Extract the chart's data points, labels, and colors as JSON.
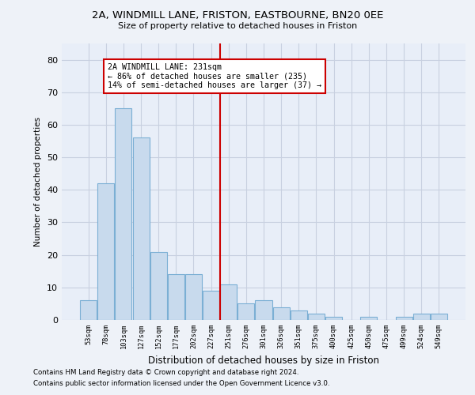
{
  "title1": "2A, WINDMILL LANE, FRISTON, EASTBOURNE, BN20 0EE",
  "title2": "Size of property relative to detached houses in Friston",
  "xlabel": "Distribution of detached houses by size in Friston",
  "ylabel": "Number of detached properties",
  "categories": [
    "53sqm",
    "78sqm",
    "103sqm",
    "127sqm",
    "152sqm",
    "177sqm",
    "202sqm",
    "227sqm",
    "251sqm",
    "276sqm",
    "301sqm",
    "326sqm",
    "351sqm",
    "375sqm",
    "400sqm",
    "425sqm",
    "450sqm",
    "475sqm",
    "499sqm",
    "524sqm",
    "549sqm"
  ],
  "values": [
    6,
    42,
    65,
    56,
    21,
    14,
    14,
    9,
    11,
    5,
    6,
    4,
    3,
    2,
    1,
    0,
    1,
    0,
    1,
    2,
    2
  ],
  "bar_color": "#c8daed",
  "bar_edge_color": "#7bafd4",
  "vline_x": 7.5,
  "vline_color": "#cc0000",
  "annotation_text": "2A WINDMILL LANE: 231sqm\n← 86% of detached houses are smaller (235)\n14% of semi-detached houses are larger (37) →",
  "annotation_box_color": "#ffffff",
  "annotation_box_edge_color": "#cc0000",
  "ylim": [
    0,
    85
  ],
  "yticks": [
    0,
    10,
    20,
    30,
    40,
    50,
    60,
    70,
    80
  ],
  "footnote1": "Contains HM Land Registry data © Crown copyright and database right 2024.",
  "footnote2": "Contains public sector information licensed under the Open Government Licence v3.0.",
  "bg_color": "#eef2f8",
  "plot_bg_color": "#e8eef8",
  "grid_color": "#c8d0e0"
}
